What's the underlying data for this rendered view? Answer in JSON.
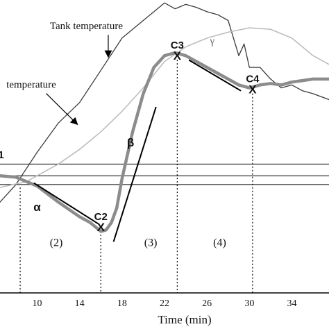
{
  "chart_data": {
    "type": "line",
    "xlabel": "Time (min)",
    "xticks": [
      10,
      14,
      18,
      22,
      26,
      30,
      34
    ],
    "xlim": [
      6.5,
      37.5
    ],
    "ylim": [
      0,
      100
    ],
    "colors": {
      "tank": "#3a3a3a",
      "second": "#bdbdbd",
      "main": "#8c8c8c",
      "fits": "#000000",
      "thresholds": "#000000"
    },
    "series": [
      {
        "name": "Tank temperature",
        "x": [
          6.5,
          8,
          10,
          12,
          14,
          16,
          18,
          20,
          22,
          23,
          24,
          25,
          26,
          27,
          28,
          29,
          29.5,
          30,
          31,
          32,
          33,
          34,
          35,
          36,
          37.5
        ],
        "y": [
          31,
          37,
          48,
          58,
          65,
          76,
          87,
          93,
          99,
          97,
          98.5,
          97.5,
          96,
          95,
          93,
          81,
          85,
          77,
          77,
          73,
          70,
          71,
          69,
          68,
          66
        ]
      },
      {
        "name": "temperature",
        "x": [
          6.5,
          9,
          12,
          14,
          16,
          18,
          20,
          22,
          24,
          26,
          28,
          30,
          32,
          34,
          36,
          37.5
        ],
        "y": [
          36,
          38,
          44,
          49,
          55,
          62,
          70,
          79,
          84,
          87,
          89,
          90.5,
          90,
          87,
          81,
          78
        ]
      },
      {
        "name": "",
        "x": [
          6.5,
          8,
          10,
          12,
          14,
          15,
          16,
          16.5,
          17,
          17.5,
          18,
          19,
          20,
          21,
          22,
          23,
          24,
          25,
          26,
          27,
          28,
          29,
          30,
          31,
          32,
          33,
          34,
          35,
          36,
          37.5
        ],
        "y": [
          40,
          39.5,
          36.5,
          31,
          26,
          24,
          21,
          21.5,
          24,
          29,
          39,
          55,
          68,
          77,
          81,
          82,
          81,
          79,
          77,
          75,
          73,
          71,
          70,
          71,
          71.5,
          71,
          72,
          72.5,
          73,
          73
        ]
      }
    ],
    "thresholds": [
      44,
      40,
      37
    ],
    "fit_lines": [
      {
        "label": "α",
        "x": [
          9.7,
          15.8
        ],
        "y": [
          37.5,
          23.5
        ]
      },
      {
        "label": "β",
        "x": [
          17.2,
          21.2
        ],
        "y": [
          17.5,
          63.5
        ]
      },
      {
        "label": "γ",
        "x": [
          24.3,
          29.2
        ],
        "y": [
          79.5,
          69
        ]
      }
    ],
    "points": [
      {
        "label": "C2",
        "x": 16.0,
        "y": 22.5
      },
      {
        "label": "C3",
        "x": 23.2,
        "y": 81
      },
      {
        "label": "C4",
        "x": 30.3,
        "y": 69.5
      }
    ],
    "point_marker": "X",
    "vlines": [
      8.4,
      16.0,
      23.2,
      30.3
    ],
    "phase_labels": [
      {
        "text": "(2)",
        "x": 11.8,
        "y": 16
      },
      {
        "text": "(3)",
        "x": 20.7,
        "y": 16
      },
      {
        "text": "(4)",
        "x": 27.2,
        "y": 16
      }
    ],
    "edge_label": {
      "text": "1",
      "x": 6.6,
      "y": 46
    },
    "greek_labels": [
      {
        "text": "α",
        "x": 10.0,
        "y": 28
      },
      {
        "text": "β",
        "x": 18.8,
        "y": 50
      },
      {
        "text": "γ",
        "x": 26.5,
        "y": 85
      }
    ],
    "annotations": [
      {
        "text": "Tank temperature",
        "x": 11.2,
        "y": 90,
        "arrow_to": [
          16.7,
          80.5
        ]
      },
      {
        "text": "temperature",
        "x": 7.1,
        "y": 70,
        "arrow_to": [
          13.8,
          57.5
        ]
      }
    ]
  }
}
